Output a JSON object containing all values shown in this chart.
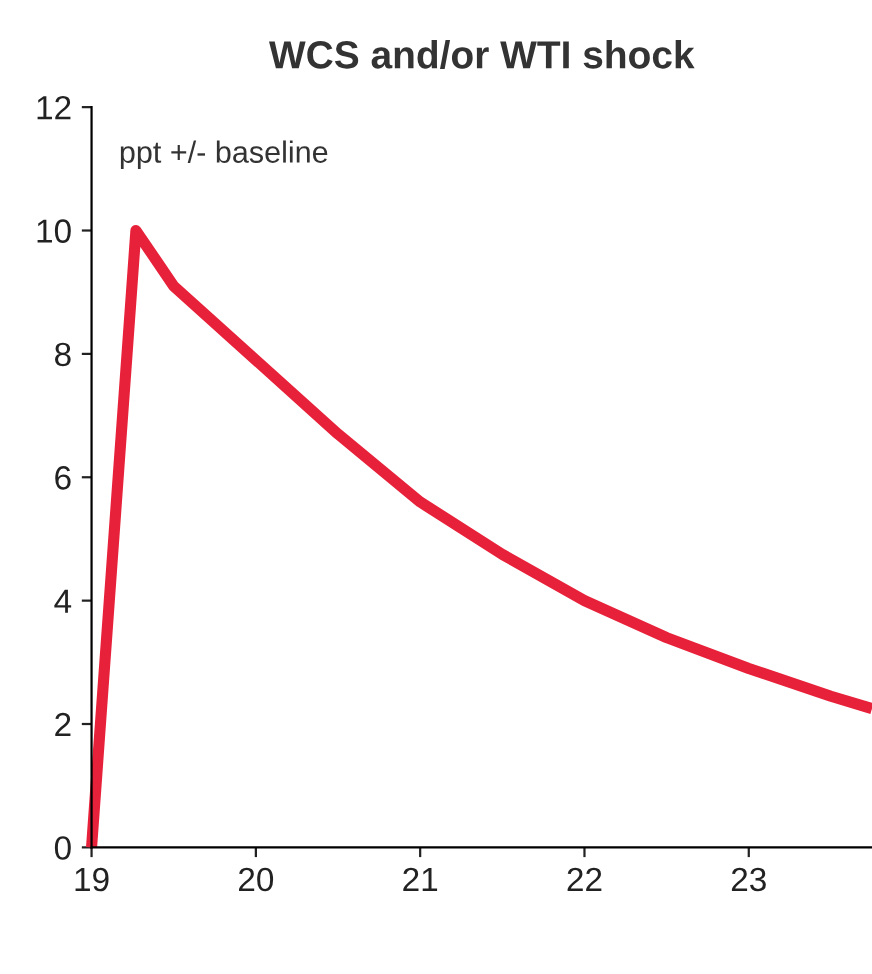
{
  "chart_data": {
    "type": "line",
    "title": "WCS and/or WTI shock",
    "annotations": [
      "ppt +/- baseline"
    ],
    "series": [
      {
        "color": "#e8213a",
        "x": [
          19.0,
          19.27,
          19.5,
          20.0,
          20.5,
          21.0,
          21.5,
          22.0,
          22.5,
          23.0,
          23.5,
          23.75
        ],
        "values": [
          0,
          10,
          9.1,
          7.9,
          6.7,
          5.6,
          4.75,
          4.0,
          3.4,
          2.9,
          2.45,
          2.25
        ]
      }
    ],
    "xlim": [
      19,
      23.75
    ],
    "xticks": [
      19,
      20,
      21,
      22,
      23
    ],
    "ylim": [
      0,
      12
    ],
    "yticks": [
      0,
      2,
      4,
      6,
      8,
      10,
      12
    ],
    "grid": false,
    "legend": false,
    "marker": "none",
    "line_style": "solid"
  }
}
